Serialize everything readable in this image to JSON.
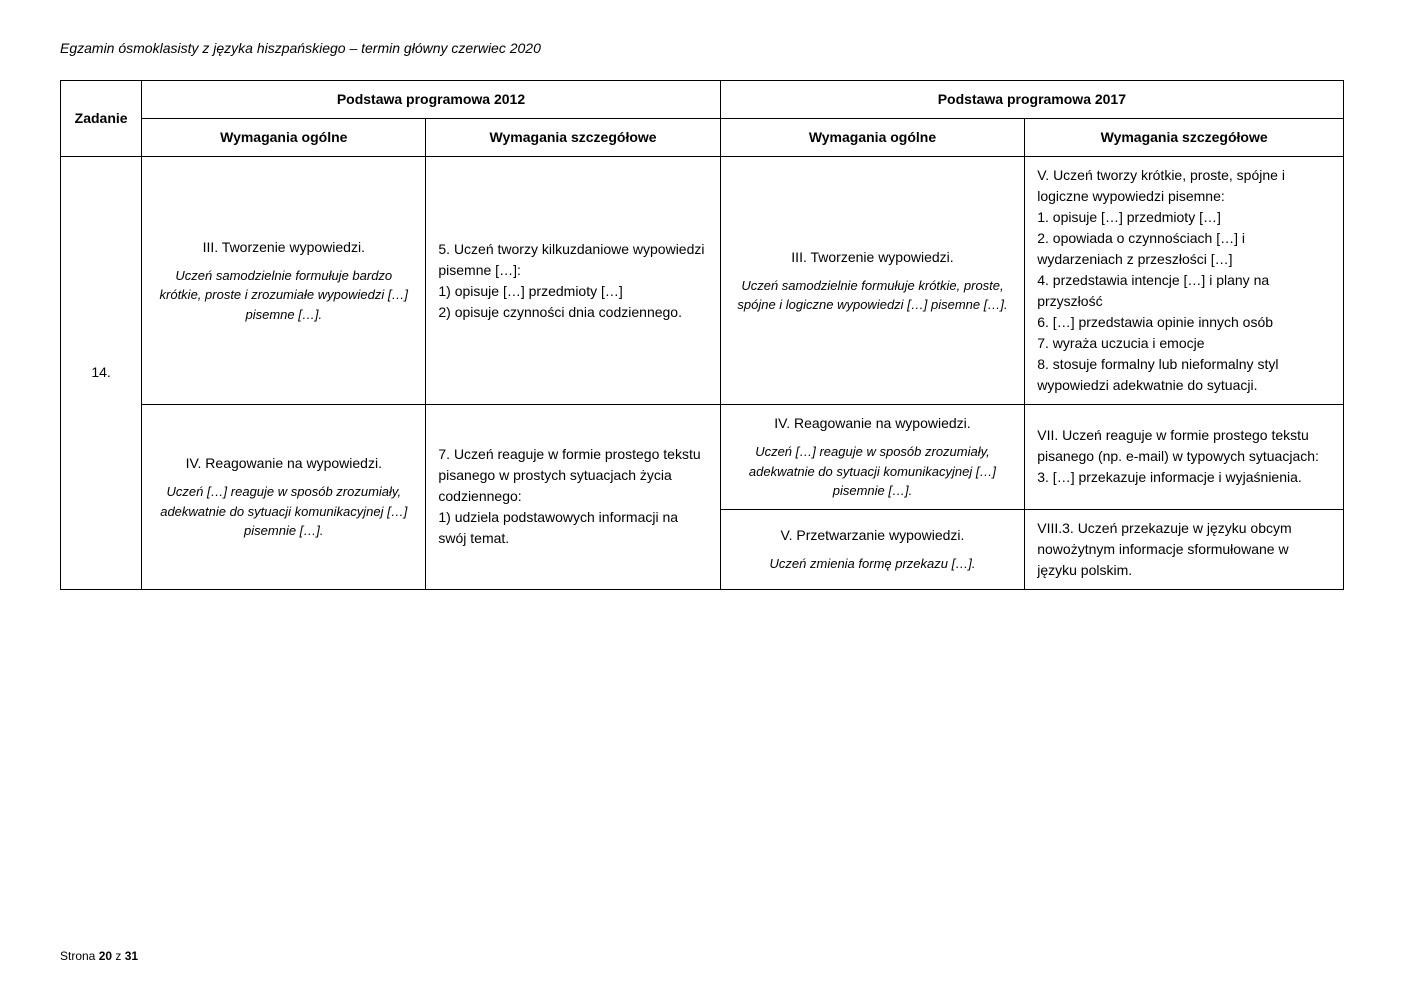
{
  "header_text": "Egzamin ósmoklasisty z języka hiszpańskiego – termin główny czerwiec 2020",
  "footer_text": "Strona 20 z 31",
  "columns": {
    "zadanie": "Zadanie",
    "pp2012": "Podstawa programowa 2012",
    "pp2017": "Podstawa programowa 2017",
    "wym_ogolne": "Wymagania ogólne",
    "wym_szczegolowe": "Wymagania szczegółowe"
  },
  "task_number": "14.",
  "rows": [
    {
      "c1_main": "III. Tworzenie wypowiedzi.",
      "c1_sub": "Uczeń samodzielnie formułuje bardzo krótkie, proste i zrozumiałe wypowiedzi […] pisemne […].",
      "c2": "5. Uczeń tworzy kilkuzdaniowe wypowiedzi pisemne […]:\n1) opisuje […] przedmioty […]\n2) opisuje czynności dnia codziennego.",
      "c3_main": "III. Tworzenie wypowiedzi.",
      "c3_sub": "Uczeń samodzielnie formułuje krótkie, proste, spójne i logiczne wypowiedzi […] pisemne […].",
      "c4": "V. Uczeń tworzy krótkie, proste, spójne i logiczne wypowiedzi pisemne:\n1. opisuje […] przedmioty […]\n2. opowiada o czynnościach […] i wydarzeniach z przeszłości […]\n4. przedstawia intencje […] i plany na przyszłość\n6. […] przedstawia opinie innych osób\n7. wyraża uczucia i emocje\n8. stosuje formalny lub nieformalny styl wypowiedzi adekwatnie do sytuacji."
    },
    {
      "c1_main": "IV. Reagowanie na wypowiedzi.",
      "c1_sub": "Uczeń […] reaguje w sposób zrozumiały, adekwatnie do sytuacji komunikacyjnej […] pisemnie […].",
      "c2": "7. Uczeń reaguje w formie prostego tekstu pisanego w prostych sytuacjach życia codziennego:\n1) udziela podstawowych informacji na swój temat.",
      "c3_main": "IV. Reagowanie na wypowiedzi.",
      "c3_sub": "Uczeń […] reaguje w sposób zrozumiały, adekwatnie do sytuacji komunikacyjnej […] pisemnie […].",
      "c4": "VII. Uczeń reaguje w formie prostego tekstu pisanego (np. e-mail) w typowych sytuacjach:\n3. […] przekazuje informacje i wyjaśnienia."
    },
    {
      "c3_main": "V. Przetwarzanie wypowiedzi.",
      "c3_sub": "Uczeń zmienia formę przekazu […].",
      "c4": "VIII.3. Uczeń przekazuje w języku obcym nowożytnym informacje sformułowane w języku polskim."
    }
  ]
}
